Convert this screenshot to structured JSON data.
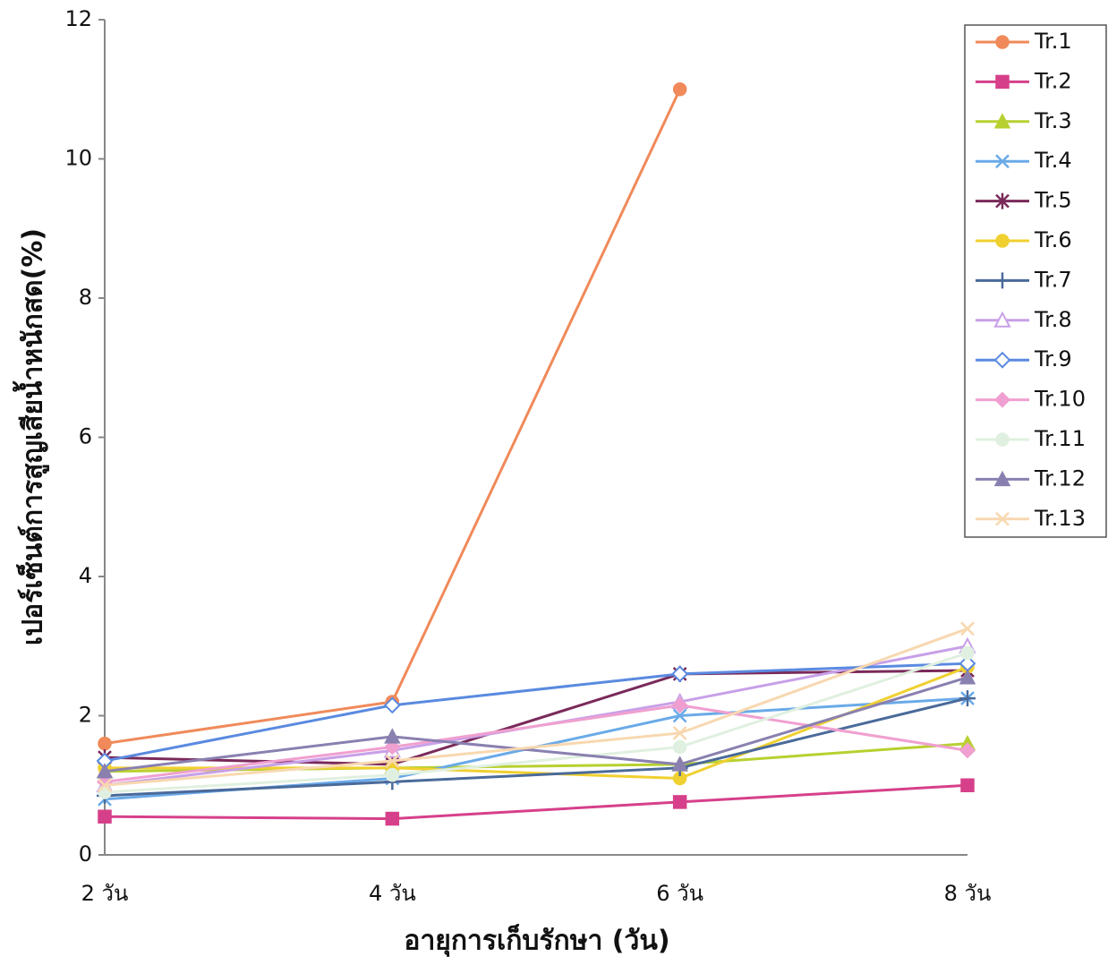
{
  "chart_data": {
    "type": "line",
    "x_label": "อายุการเก็บรักษา (วัน)",
    "y_label": "เปอร์เซ็นต์การสูญเสียน้ำหนักสด(%)",
    "categories": [
      "2 วัน",
      "4 วัน",
      "6 วัน",
      "8 วัน"
    ],
    "ylim": [
      0,
      12
    ],
    "yticks": [
      0,
      2,
      4,
      6,
      8,
      10,
      12
    ],
    "grid": false,
    "legend": "right",
    "series": [
      {
        "name": "Tr.1",
        "color": "#f08a5a",
        "marker": "circle",
        "values": [
          1.6,
          2.2,
          11.0,
          null
        ]
      },
      {
        "name": "Tr.2",
        "color": "#d6408a",
        "marker": "square",
        "values": [
          0.55,
          0.52,
          0.76,
          1.0
        ]
      },
      {
        "name": "Tr.3",
        "color": "#b8d030",
        "marker": "triangle",
        "values": [
          1.2,
          1.25,
          1.3,
          1.6
        ]
      },
      {
        "name": "Tr.4",
        "color": "#6aaae8",
        "marker": "x",
        "values": [
          0.8,
          1.1,
          2.0,
          2.25
        ]
      },
      {
        "name": "Tr.5",
        "color": "#7a2a5a",
        "marker": "star",
        "values": [
          1.4,
          1.3,
          2.6,
          2.65
        ]
      },
      {
        "name": "Tr.6",
        "color": "#f0d030",
        "marker": "circle",
        "values": [
          1.25,
          1.25,
          1.1,
          2.7
        ]
      },
      {
        "name": "Tr.7",
        "color": "#4a6a9a",
        "marker": "plus",
        "values": [
          0.85,
          1.05,
          1.25,
          2.25
        ]
      },
      {
        "name": "Tr.8",
        "color": "#c8a0e8",
        "marker": "triangle-open",
        "values": [
          1.0,
          1.5,
          2.2,
          3.0
        ]
      },
      {
        "name": "Tr.9",
        "color": "#5a8ae0",
        "marker": "diamond-open",
        "values": [
          1.35,
          2.15,
          2.6,
          2.75
        ]
      },
      {
        "name": "Tr.10",
        "color": "#f0a0d0",
        "marker": "diamond",
        "values": [
          1.05,
          1.55,
          2.15,
          1.5
        ]
      },
      {
        "name": "Tr.11",
        "color": "#e0f0e0",
        "marker": "circle",
        "values": [
          0.9,
          1.15,
          1.55,
          2.9
        ]
      },
      {
        "name": "Tr.12",
        "color": "#8a80b0",
        "marker": "triangle",
        "values": [
          1.2,
          1.7,
          1.3,
          2.55
        ]
      },
      {
        "name": "Tr.13",
        "color": "#f8d8b0",
        "marker": "x",
        "values": [
          1.0,
          1.35,
          1.75,
          3.25
        ]
      }
    ]
  }
}
